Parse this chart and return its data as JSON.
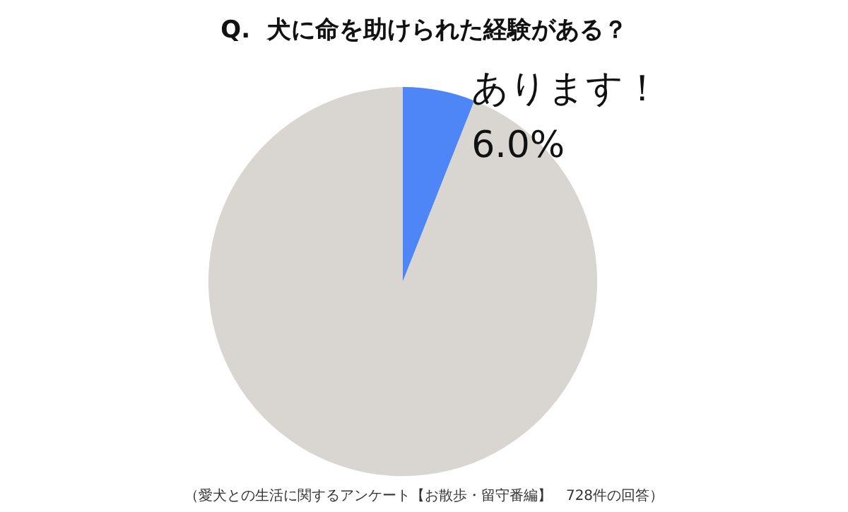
{
  "chart_data": {
    "type": "pie",
    "title": "Q.  犬に命を助けられた経験がある？",
    "categories": [
      "あります！",
      null
    ],
    "values": [
      6.0,
      94.0
    ],
    "value_labels": [
      "6.0%",
      null
    ],
    "colors": [
      "#4f86f7",
      "#d9d6d2"
    ],
    "annotations": [
      "（愛犬との生活に関するアンケート【お散歩・留守番編】　728件の回答）"
    ],
    "legend": false
  }
}
